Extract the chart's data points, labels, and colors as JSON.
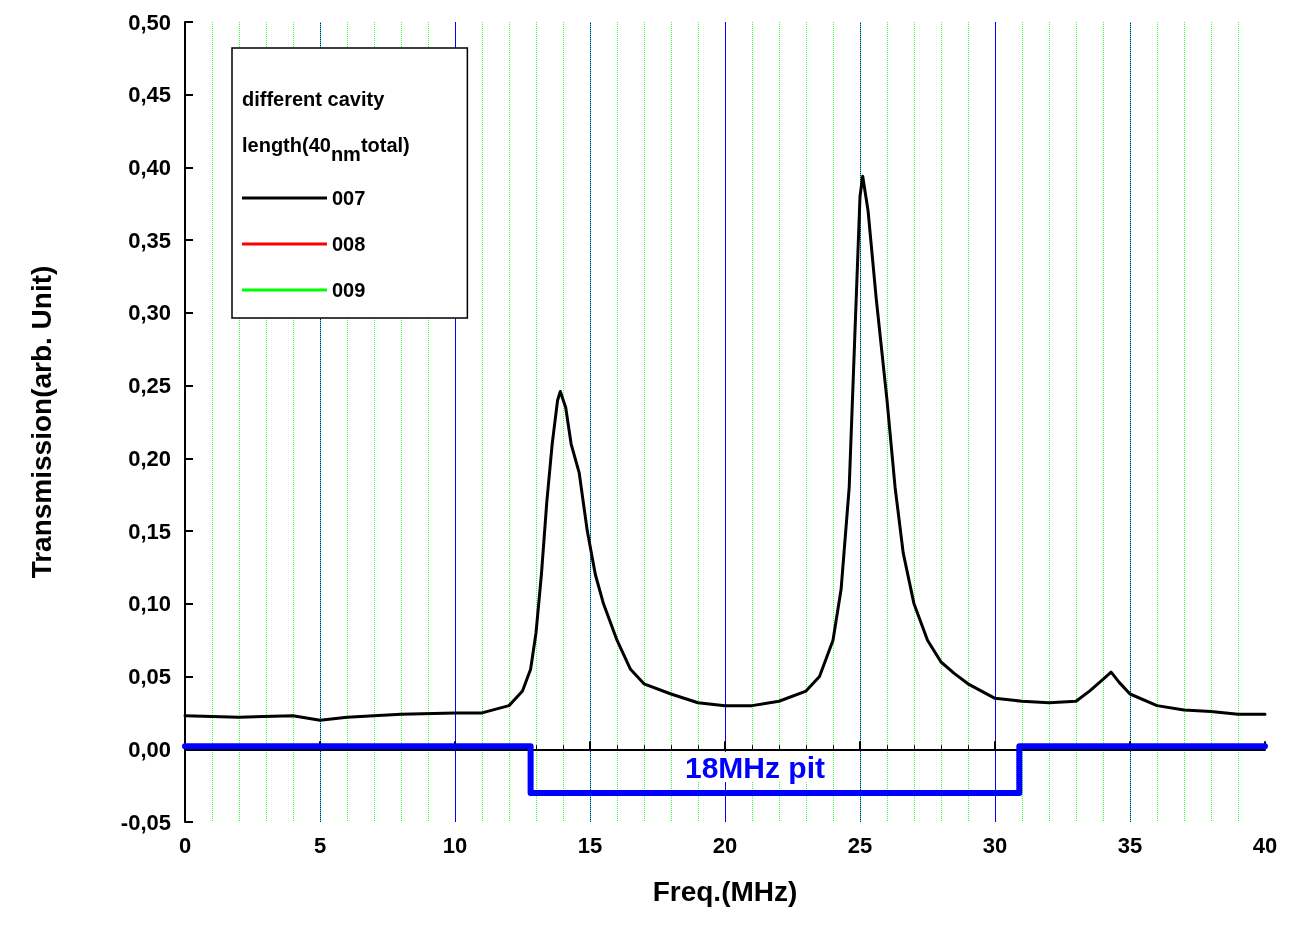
{
  "chart_data": {
    "type": "line",
    "xlabel": "Freq.(MHz)",
    "ylabel": "Transmission(arb. Unit)",
    "legend_title": "different cavity length(40$_{nm}$total)",
    "xlim": [
      0,
      40
    ],
    "xticks": [
      0,
      5,
      10,
      15,
      20,
      25,
      30,
      35,
      40
    ],
    "ylim": [
      -0.05,
      0.5
    ],
    "yticks": [
      {
        "value": -0.05,
        "label": "-0,05"
      },
      {
        "value": 0,
        "label": "0,00"
      },
      {
        "value": 0.05,
        "label": "0,05"
      },
      {
        "value": 0.1,
        "label": "0,10"
      },
      {
        "value": 0.15,
        "label": "0,15"
      },
      {
        "value": 0.2,
        "label": "0,20"
      },
      {
        "value": 0.25,
        "label": "0,25"
      },
      {
        "value": 0.3,
        "label": "0,30"
      },
      {
        "value": 0.35,
        "label": "0,35"
      },
      {
        "value": 0.4,
        "label": "0,40"
      },
      {
        "value": 0.45,
        "label": "0,45"
      },
      {
        "value": 0.5,
        "label": "0,50"
      }
    ],
    "grid": "x",
    "legend": "top left",
    "marker": "none",
    "line_style": "solid",
    "annotations": [
      "18MHz pit"
    ],
    "series": [
      {
        "name": "007",
        "color": "#000000",
        "x": [
          0,
          2,
          4,
          5,
          6,
          8,
          10,
          11,
          12,
          12.5,
          12.8,
          13,
          13.2,
          13.4,
          13.6,
          13.8,
          13.9,
          14.1,
          14.3,
          14.6,
          14.9,
          15.2,
          15.5,
          16,
          16.5,
          17,
          18,
          19,
          20,
          21,
          22,
          23,
          23.5,
          24,
          24.3,
          24.6,
          24.8,
          25,
          25.1,
          25.3,
          25.6,
          26,
          26.3,
          26.6,
          27,
          27.5,
          28,
          28.5,
          29,
          30,
          31,
          32,
          33,
          33.5,
          34,
          34.3,
          34.6,
          35,
          36,
          37,
          38,
          39,
          40
        ],
        "values": [
          0.023,
          0.022,
          0.023,
          0.02,
          0.022,
          0.024,
          0.025,
          0.025,
          0.03,
          0.04,
          0.055,
          0.08,
          0.12,
          0.17,
          0.21,
          0.24,
          0.246,
          0.235,
          0.21,
          0.19,
          0.15,
          0.12,
          0.1,
          0.075,
          0.055,
          0.045,
          0.038,
          0.032,
          0.03,
          0.03,
          0.033,
          0.04,
          0.05,
          0.075,
          0.11,
          0.18,
          0.28,
          0.38,
          0.394,
          0.37,
          0.31,
          0.24,
          0.18,
          0.135,
          0.1,
          0.075,
          0.06,
          0.052,
          0.045,
          0.035,
          0.033,
          0.032,
          0.033,
          0.04,
          0.048,
          0.053,
          0.046,
          0.038,
          0.03,
          0.027,
          0.026,
          0.024,
          0.024
        ]
      },
      {
        "name": "008",
        "color": "#ff0000"
      },
      {
        "name": "009",
        "color": "#00ff00"
      },
      {
        "type": "step",
        "color": "#0000ff",
        "x": [
          0,
          12.8,
          30.9,
          40
        ],
        "values": [
          0.002,
          -0.03,
          0.002,
          0.002
        ]
      }
    ]
  }
}
